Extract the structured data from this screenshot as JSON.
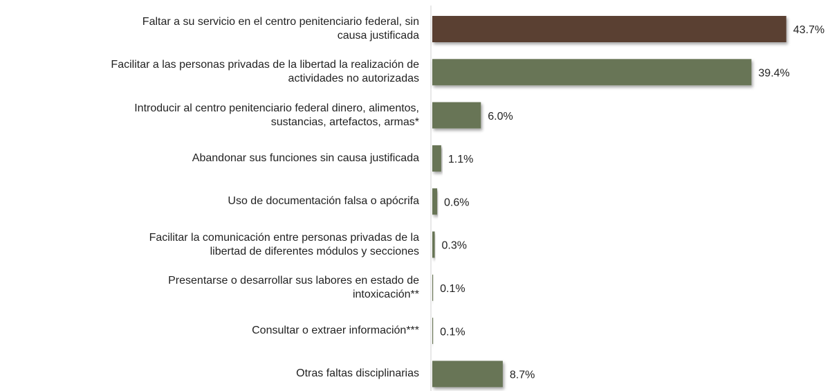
{
  "chart_data": {
    "type": "hbar",
    "categories": [
      "Faltar a su servicio en el centro penitenciario federal, sin\ncausa justificada",
      "Facilitar a las personas privadas de la libertad la realización de\nactividades no autorizadas",
      "Introducir al centro penitenciario federal  dinero, alimentos,\nsustancias, artefactos, armas*",
      "Abandonar sus funciones sin causa justificada",
      "Uso de documentación falsa o apócrifa",
      "Facilitar la comunicación entre personas privadas de la\nlibertad de diferentes módulos y secciones",
      "Presentarse o desarrollar sus labores en estado de\nintoxicación**",
      "Consultar o extraer información***",
      "Otras faltas disciplinarias"
    ],
    "values": [
      43.7,
      39.4,
      6.0,
      1.1,
      0.6,
      0.3,
      0.1,
      0.1,
      8.7
    ],
    "value_labels": [
      "43.7%",
      "39.4%",
      "6.0%",
      "1.1%",
      "0.6%",
      "0.3%",
      "0.1%",
      "0.1%",
      "8.7%"
    ],
    "colors": [
      "#5a4030",
      "#687556",
      "#687556",
      "#687556",
      "#687556",
      "#687556",
      "#687556",
      "#687556",
      "#687556"
    ],
    "xlim": [
      0,
      45
    ]
  }
}
